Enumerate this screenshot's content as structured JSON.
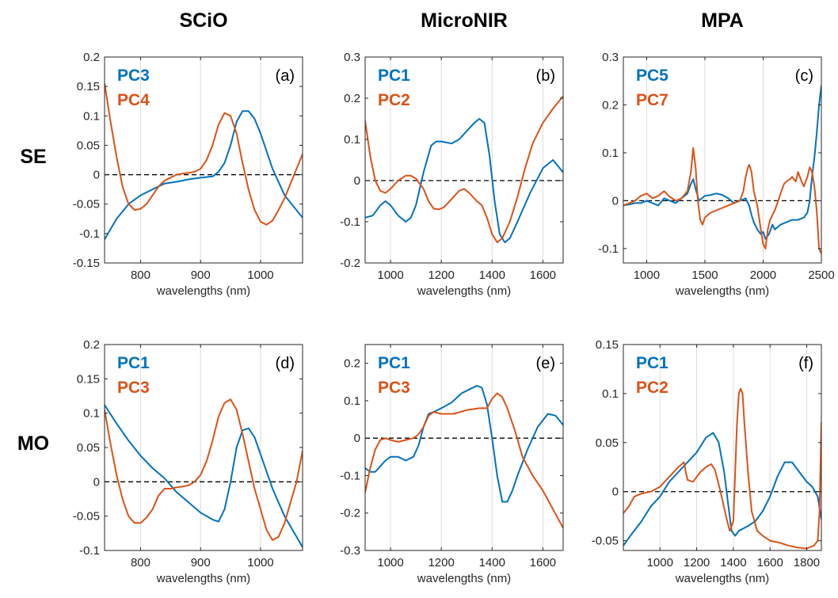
{
  "column_titles": [
    "SCiO",
    "MicroNIR",
    "MPA"
  ],
  "row_labels": [
    "SE",
    "MO"
  ],
  "colors": {
    "blue": "#0072BD",
    "orange": "#D95319"
  },
  "chart_data": [
    {
      "type": "line",
      "panel": "(a)",
      "xlabel": "wavelengths (nm)",
      "xlim": [
        740,
        1070
      ],
      "ylim": [
        -0.15,
        0.2
      ],
      "xticks": [
        800,
        900,
        1000
      ],
      "yticks": [
        -0.15,
        -0.1,
        -0.05,
        0,
        0.05,
        0.1,
        0.15,
        0.2
      ],
      "ytick_labels": [
        "-0.15",
        "-0.1",
        "-0.05",
        "0",
        "0.05",
        "0.1",
        "0.15",
        "0.2"
      ],
      "series": [
        {
          "name": "PC3",
          "color": "#0072BD",
          "x": [
            740,
            760,
            780,
            800,
            820,
            840,
            860,
            880,
            900,
            920,
            930,
            940,
            950,
            960,
            970,
            980,
            990,
            1000,
            1020,
            1040,
            1070
          ],
          "y": [
            -0.11,
            -0.075,
            -0.05,
            -0.035,
            -0.025,
            -0.015,
            -0.012,
            -0.008,
            -0.005,
            -0.003,
            0.005,
            0.02,
            0.05,
            0.09,
            0.108,
            0.108,
            0.095,
            0.07,
            0.01,
            -0.035,
            -0.073
          ]
        },
        {
          "name": "PC4",
          "color": "#D95319",
          "x": [
            740,
            750,
            760,
            770,
            780,
            790,
            800,
            810,
            820,
            830,
            840,
            850,
            860,
            870,
            880,
            890,
            900,
            910,
            920,
            930,
            940,
            950,
            960,
            970,
            980,
            990,
            1000,
            1010,
            1020,
            1030,
            1040,
            1050,
            1060,
            1070
          ],
          "y": [
            0.155,
            0.09,
            0.03,
            -0.02,
            -0.05,
            -0.06,
            -0.058,
            -0.05,
            -0.035,
            -0.02,
            -0.01,
            -0.005,
            0.0,
            0.002,
            0.003,
            0.005,
            0.01,
            0.025,
            0.05,
            0.085,
            0.105,
            0.1,
            0.07,
            0.02,
            -0.025,
            -0.06,
            -0.08,
            -0.085,
            -0.078,
            -0.06,
            -0.04,
            -0.015,
            0.01,
            0.035
          ]
        }
      ]
    },
    {
      "type": "line",
      "panel": "(b)",
      "xlabel": "wavelengths (nm)",
      "xlim": [
        900,
        1680
      ],
      "ylim": [
        -0.2,
        0.3
      ],
      "xticks": [
        1000,
        1200,
        1400,
        1600
      ],
      "yticks": [
        -0.2,
        -0.1,
        0,
        0.1,
        0.2,
        0.3
      ],
      "ytick_labels": [
        "-0.2",
        "-0.1",
        "0",
        "0.1",
        "0.2",
        "0.3"
      ],
      "series": [
        {
          "name": "PC1",
          "color": "#0072BD",
          "x": [
            900,
            930,
            960,
            980,
            1000,
            1030,
            1060,
            1080,
            1100,
            1130,
            1160,
            1180,
            1200,
            1240,
            1270,
            1300,
            1330,
            1350,
            1370,
            1390,
            1410,
            1430,
            1450,
            1470,
            1500,
            1550,
            1600,
            1640,
            1680
          ],
          "y": [
            -0.09,
            -0.085,
            -0.06,
            -0.05,
            -0.06,
            -0.085,
            -0.1,
            -0.09,
            -0.06,
            0.02,
            0.085,
            0.095,
            0.095,
            0.09,
            0.1,
            0.12,
            0.14,
            0.15,
            0.14,
            0.06,
            -0.05,
            -0.13,
            -0.15,
            -0.14,
            -0.1,
            -0.03,
            0.03,
            0.05,
            0.02
          ]
        },
        {
          "name": "PC2",
          "color": "#D95319",
          "x": [
            900,
            920,
            940,
            960,
            980,
            1000,
            1030,
            1060,
            1080,
            1100,
            1130,
            1150,
            1170,
            1190,
            1210,
            1240,
            1270,
            1290,
            1310,
            1340,
            1360,
            1380,
            1400,
            1420,
            1440,
            1470,
            1500,
            1530,
            1560,
            1600,
            1640,
            1680
          ],
          "y": [
            0.145,
            0.06,
            0.0,
            -0.025,
            -0.03,
            -0.02,
            0.0,
            0.012,
            0.012,
            0.005,
            -0.02,
            -0.05,
            -0.068,
            -0.07,
            -0.065,
            -0.045,
            -0.025,
            -0.02,
            -0.03,
            -0.05,
            -0.06,
            -0.09,
            -0.13,
            -0.15,
            -0.14,
            -0.1,
            -0.04,
            0.03,
            0.09,
            0.14,
            0.175,
            0.205
          ]
        }
      ]
    },
    {
      "type": "line",
      "panel": "(c)",
      "xlabel": "wavelengths (nm)",
      "xlim": [
        800,
        2500
      ],
      "ylim": [
        -0.13,
        0.3
      ],
      "xticks": [
        1000,
        1500,
        2000,
        2500
      ],
      "yticks": [
        -0.1,
        0,
        0.1,
        0.2,
        0.3
      ],
      "ytick_labels": [
        "-0.1",
        "0",
        "0.1",
        "0.2",
        "0.3"
      ],
      "series": [
        {
          "name": "PC5",
          "color": "#0072BD",
          "x": [
            800,
            850,
            900,
            950,
            1000,
            1050,
            1100,
            1150,
            1200,
            1250,
            1300,
            1350,
            1380,
            1400,
            1420,
            1450,
            1500,
            1550,
            1600,
            1650,
            1700,
            1750,
            1800,
            1850,
            1880,
            1900,
            1920,
            1950,
            1980,
            2000,
            2020,
            2050,
            2080,
            2100,
            2150,
            2200,
            2250,
            2300,
            2350,
            2380,
            2400,
            2420,
            2440,
            2460,
            2480,
            2500
          ],
          "y": [
            -0.01,
            -0.008,
            -0.005,
            -0.005,
            0.0,
            -0.005,
            -0.01,
            0.005,
            0.0,
            -0.005,
            0.005,
            0.015,
            0.035,
            0.045,
            0.025,
            0.0,
            0.01,
            0.012,
            0.015,
            0.012,
            0.005,
            -0.005,
            0.0,
            0.005,
            -0.01,
            -0.03,
            -0.045,
            -0.06,
            -0.07,
            -0.065,
            -0.08,
            -0.07,
            -0.05,
            -0.06,
            -0.05,
            -0.045,
            -0.04,
            -0.04,
            -0.035,
            -0.025,
            0.0,
            0.05,
            0.09,
            0.14,
            0.2,
            0.24
          ]
        },
        {
          "name": "PC7",
          "color": "#D95319",
          "x": [
            800,
            850,
            900,
            950,
            1000,
            1050,
            1100,
            1150,
            1200,
            1250,
            1300,
            1350,
            1380,
            1400,
            1420,
            1440,
            1460,
            1480,
            1500,
            1550,
            1600,
            1650,
            1700,
            1750,
            1800,
            1830,
            1850,
            1870,
            1880,
            1900,
            1920,
            1950,
            1980,
            2000,
            2020,
            2040,
            2060,
            2080,
            2100,
            2130,
            2150,
            2180,
            2200,
            2230,
            2250,
            2280,
            2300,
            2330,
            2350,
            2380,
            2400,
            2420,
            2440,
            2460,
            2480,
            2500
          ],
          "y": [
            -0.01,
            -0.005,
            0.0,
            0.01,
            0.015,
            0.005,
            0.01,
            0.02,
            0.008,
            0.0,
            0.005,
            0.02,
            0.06,
            0.11,
            0.07,
            0.0,
            -0.04,
            -0.05,
            -0.035,
            -0.025,
            -0.02,
            -0.015,
            -0.01,
            -0.005,
            0.0,
            0.02,
            0.05,
            0.07,
            0.075,
            0.06,
            0.02,
            -0.01,
            -0.06,
            -0.09,
            -0.1,
            -0.06,
            -0.04,
            -0.03,
            -0.02,
            0.0,
            0.015,
            0.035,
            0.04,
            0.045,
            0.05,
            0.04,
            0.06,
            0.04,
            0.03,
            0.05,
            0.07,
            0.06,
            0.03,
            -0.02,
            -0.1,
            -0.11
          ]
        }
      ]
    },
    {
      "type": "line",
      "panel": "(d)",
      "xlabel": "wavelengths (nm)",
      "xlim": [
        740,
        1070
      ],
      "ylim": [
        -0.1,
        0.2
      ],
      "xticks": [
        800,
        900,
        1000
      ],
      "yticks": [
        -0.1,
        -0.05,
        0,
        0.05,
        0.1,
        0.15,
        0.2
      ],
      "ytick_labels": [
        "-0.1",
        "-0.05",
        "0",
        "0.05",
        "0.1",
        "0.15",
        "0.2"
      ],
      "series": [
        {
          "name": "PC1",
          "color": "#0072BD",
          "x": [
            740,
            760,
            780,
            800,
            820,
            840,
            860,
            880,
            900,
            920,
            930,
            940,
            950,
            960,
            970,
            980,
            990,
            1000,
            1020,
            1040,
            1070
          ],
          "y": [
            0.112,
            0.085,
            0.06,
            0.038,
            0.02,
            0.005,
            -0.015,
            -0.03,
            -0.045,
            -0.055,
            -0.058,
            -0.04,
            0.0,
            0.05,
            0.075,
            0.078,
            0.065,
            0.04,
            -0.01,
            -0.05,
            -0.095
          ]
        },
        {
          "name": "PC3",
          "color": "#D95319",
          "x": [
            740,
            750,
            760,
            770,
            780,
            790,
            800,
            810,
            820,
            830,
            840,
            850,
            860,
            870,
            880,
            890,
            900,
            910,
            920,
            930,
            940,
            950,
            960,
            970,
            980,
            990,
            1000,
            1010,
            1020,
            1030,
            1040,
            1050,
            1060,
            1070
          ],
          "y": [
            0.105,
            0.055,
            0.01,
            -0.025,
            -0.05,
            -0.06,
            -0.06,
            -0.052,
            -0.04,
            -0.02,
            -0.01,
            -0.01,
            -0.008,
            -0.007,
            -0.005,
            0.0,
            0.01,
            0.03,
            0.06,
            0.095,
            0.115,
            0.12,
            0.105,
            0.07,
            0.03,
            -0.01,
            -0.04,
            -0.07,
            -0.085,
            -0.08,
            -0.06,
            -0.03,
            0.0,
            0.045
          ]
        }
      ]
    },
    {
      "type": "line",
      "panel": "(e)",
      "xlabel": "wavelengths (nm)",
      "xlim": [
        900,
        1680
      ],
      "ylim": [
        -0.3,
        0.25
      ],
      "xticks": [
        1000,
        1200,
        1400,
        1600
      ],
      "yticks": [
        -0.3,
        -0.2,
        -0.1,
        0,
        0.1,
        0.2
      ],
      "ytick_labels": [
        "-0.3",
        "-0.2",
        "-0.1",
        "0",
        "0.1",
        "0.2"
      ],
      "series": [
        {
          "name": "PC1",
          "color": "#0072BD",
          "x": [
            900,
            920,
            940,
            960,
            980,
            1000,
            1030,
            1060,
            1090,
            1110,
            1130,
            1150,
            1170,
            1200,
            1240,
            1280,
            1310,
            1340,
            1360,
            1380,
            1400,
            1420,
            1440,
            1460,
            1480,
            1500,
            1540,
            1580,
            1620,
            1650,
            1680
          ],
          "y": [
            -0.08,
            -0.09,
            -0.09,
            -0.075,
            -0.06,
            -0.05,
            -0.05,
            -0.06,
            -0.05,
            -0.02,
            0.03,
            0.065,
            0.07,
            0.08,
            0.095,
            0.12,
            0.13,
            0.14,
            0.135,
            0.09,
            0.0,
            -0.1,
            -0.17,
            -0.17,
            -0.14,
            -0.1,
            -0.03,
            0.03,
            0.065,
            0.06,
            0.035
          ]
        },
        {
          "name": "PC3",
          "color": "#D95319",
          "x": [
            900,
            920,
            940,
            960,
            980,
            1000,
            1030,
            1060,
            1090,
            1110,
            1130,
            1150,
            1170,
            1200,
            1250,
            1300,
            1350,
            1380,
            1400,
            1420,
            1440,
            1460,
            1490,
            1520,
            1560,
            1600,
            1640,
            1680
          ],
          "y": [
            -0.145,
            -0.08,
            -0.03,
            -0.005,
            0.0,
            -0.005,
            -0.01,
            -0.005,
            0.0,
            0.01,
            0.03,
            0.06,
            0.07,
            0.065,
            0.065,
            0.075,
            0.08,
            0.08,
            0.105,
            0.12,
            0.11,
            0.08,
            0.02,
            -0.05,
            -0.1,
            -0.14,
            -0.19,
            -0.24
          ]
        }
      ]
    },
    {
      "type": "line",
      "panel": "(f)",
      "xlabel": "wavelengths (nm)",
      "xlim": [
        800,
        1880
      ],
      "ylim": [
        -0.06,
        0.15
      ],
      "xticks": [
        1000,
        1200,
        1400,
        1600,
        1800
      ],
      "yticks": [
        -0.05,
        0,
        0.05,
        0.1,
        0.15
      ],
      "ytick_labels": [
        "-0.05",
        "0",
        "0.05",
        "0.1",
        "0.15"
      ],
      "series": [
        {
          "name": "PC1",
          "color": "#0072BD",
          "x": [
            800,
            850,
            900,
            950,
            1000,
            1050,
            1100,
            1150,
            1200,
            1250,
            1290,
            1320,
            1350,
            1370,
            1390,
            1410,
            1430,
            1450,
            1480,
            1520,
            1560,
            1600,
            1640,
            1680,
            1720,
            1760,
            1800,
            1830,
            1860,
            1880
          ],
          "y": [
            -0.055,
            -0.042,
            -0.03,
            -0.015,
            -0.005,
            0.01,
            0.02,
            0.03,
            0.04,
            0.055,
            0.06,
            0.05,
            0.02,
            -0.01,
            -0.04,
            -0.045,
            -0.04,
            -0.038,
            -0.035,
            -0.03,
            -0.02,
            -0.005,
            0.015,
            0.03,
            0.03,
            0.02,
            0.01,
            0.005,
            -0.005,
            -0.028
          ]
        },
        {
          "name": "PC2",
          "color": "#D95319",
          "x": [
            800,
            830,
            860,
            900,
            950,
            1000,
            1050,
            1100,
            1130,
            1150,
            1180,
            1220,
            1250,
            1280,
            1300,
            1330,
            1360,
            1380,
            1400,
            1410,
            1420,
            1430,
            1440,
            1450,
            1460,
            1480,
            1500,
            1530,
            1560,
            1600,
            1650,
            1700,
            1750,
            1800,
            1840,
            1860,
            1870,
            1880
          ],
          "y": [
            -0.022,
            -0.015,
            -0.005,
            -0.002,
            0.0,
            0.005,
            0.015,
            0.025,
            0.03,
            0.012,
            0.01,
            0.02,
            0.025,
            0.028,
            0.022,
            0.0,
            -0.025,
            -0.04,
            -0.03,
            0.02,
            0.07,
            0.1,
            0.105,
            0.1,
            0.07,
            0.02,
            -0.02,
            -0.04,
            -0.045,
            -0.05,
            -0.052,
            -0.055,
            -0.057,
            -0.058,
            -0.055,
            -0.05,
            -0.02,
            0.07
          ]
        }
      ]
    }
  ]
}
